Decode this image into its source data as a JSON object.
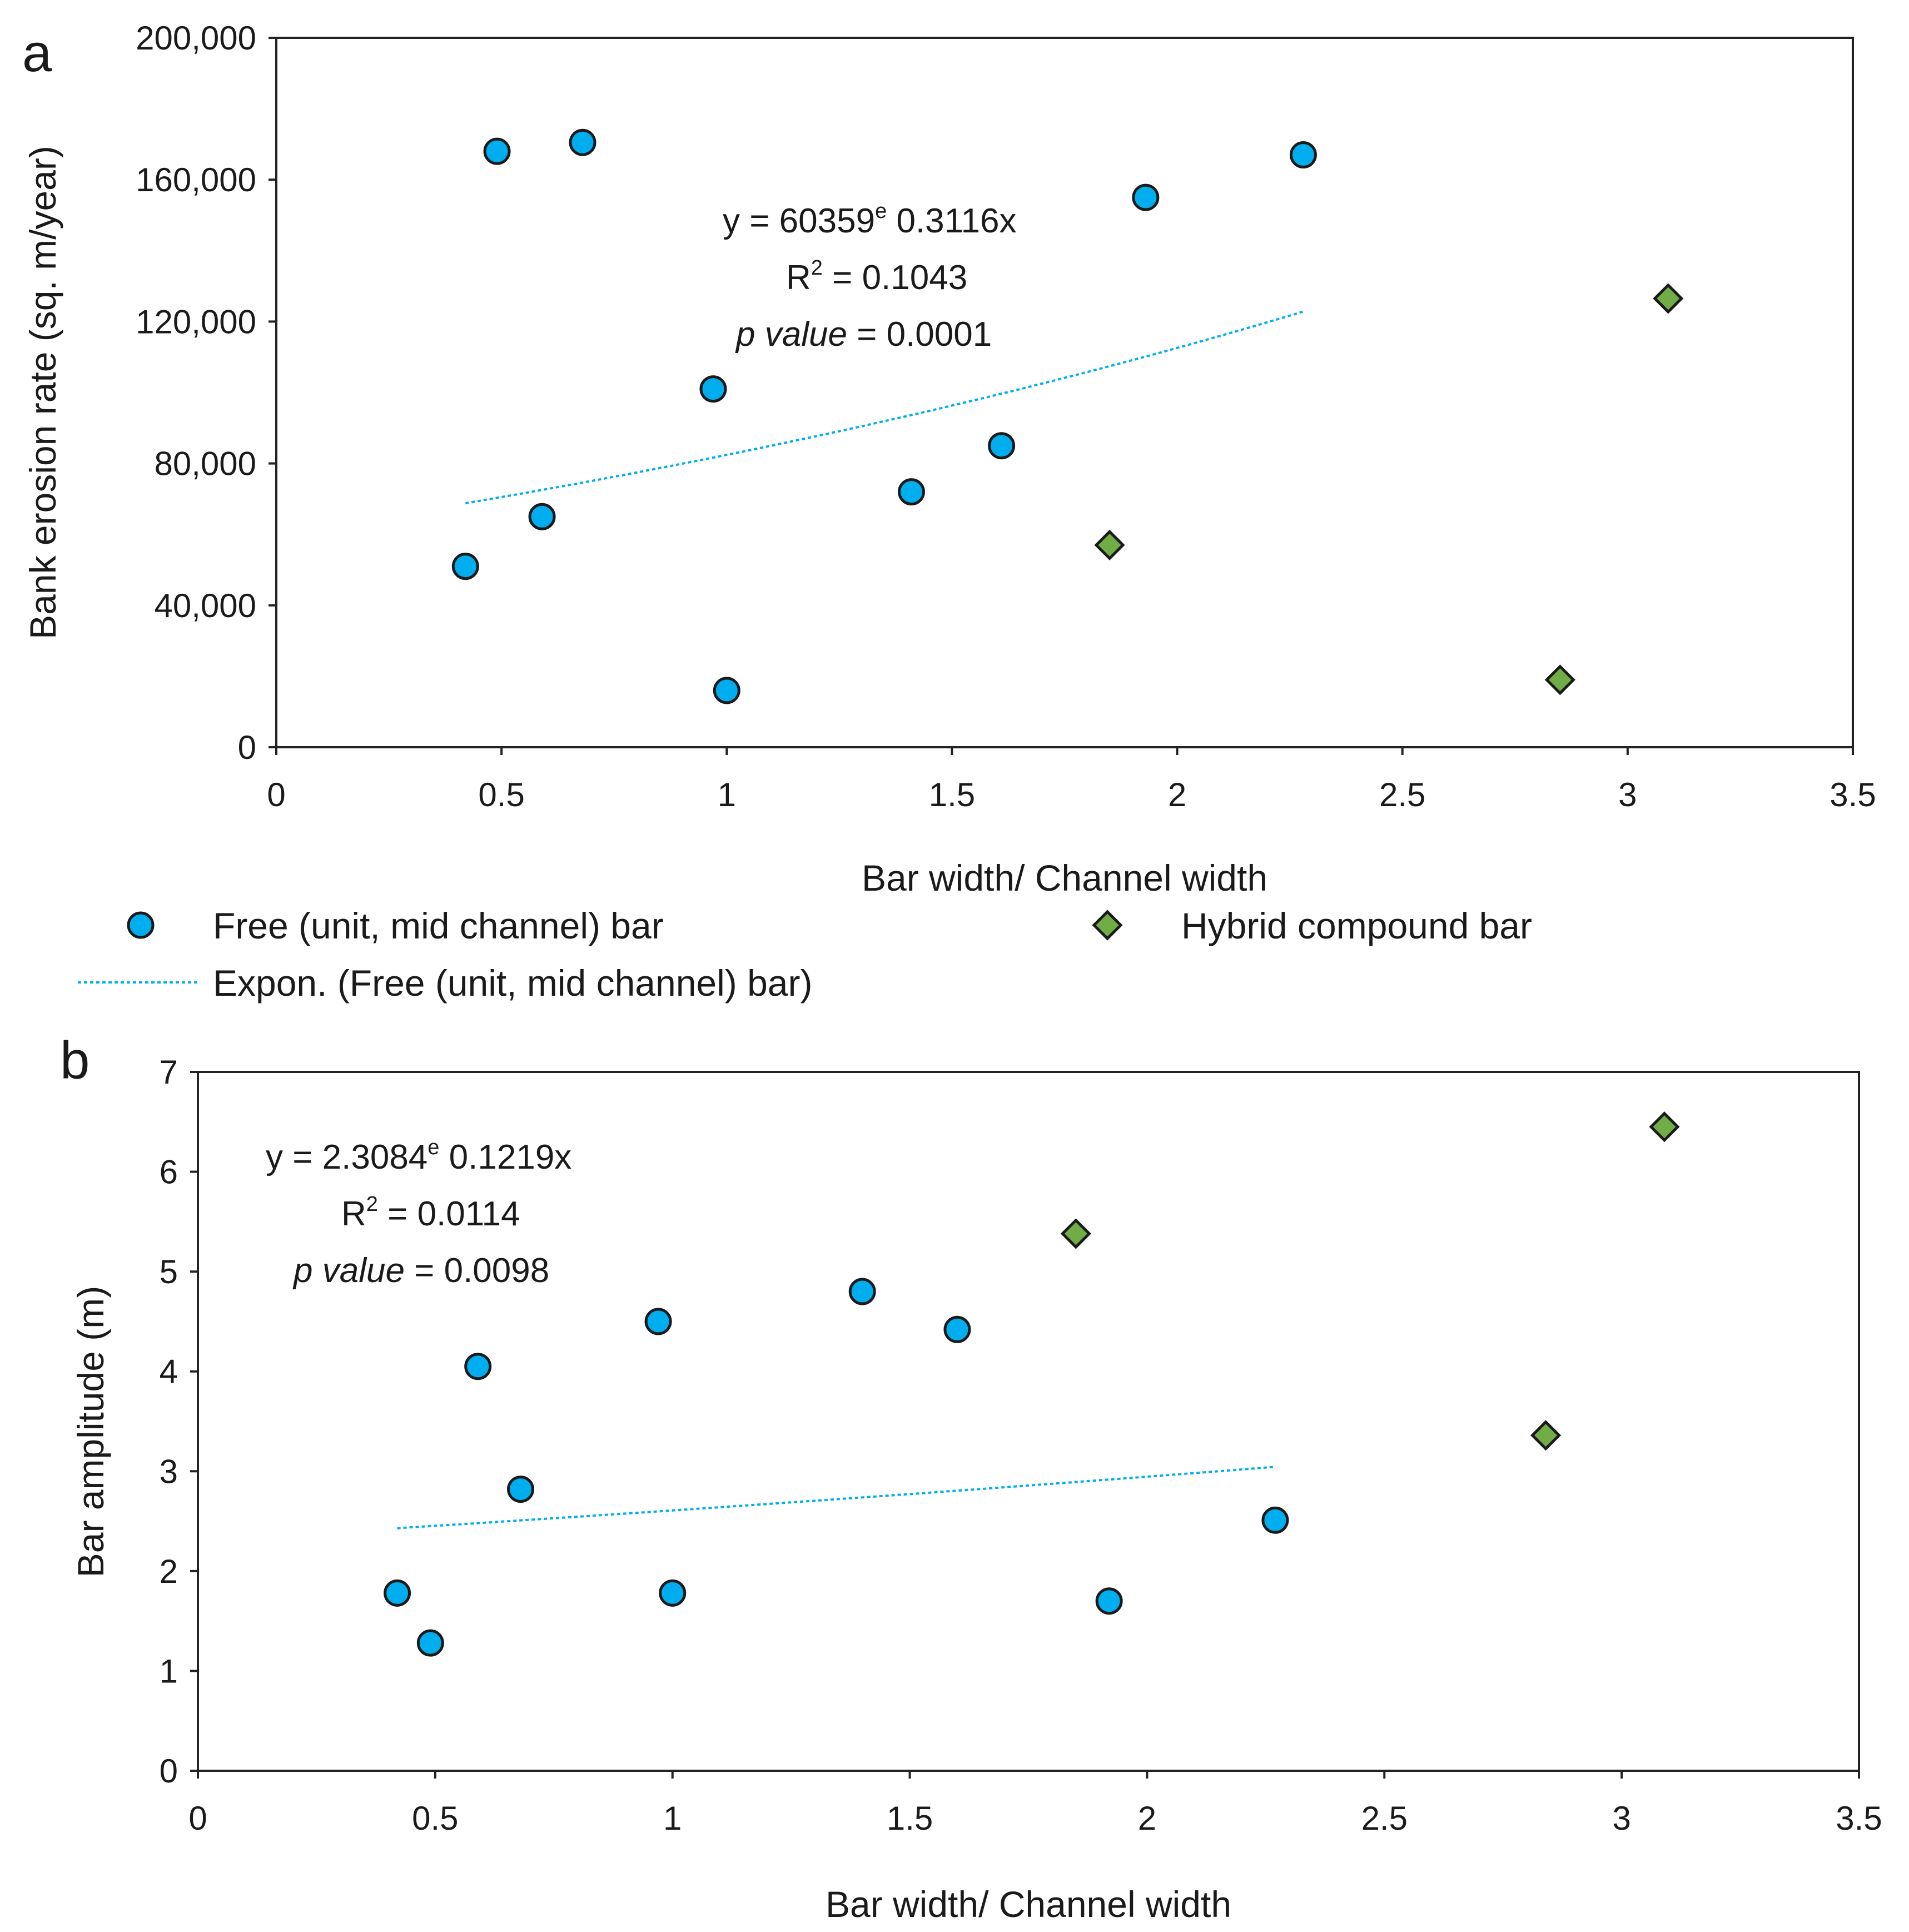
{
  "chart_data": [
    {
      "panel_label": "a",
      "type": "scatter",
      "xlabel": "Bar width/ Channel width",
      "ylabel": "Bank erosion rate (sq. m/year)",
      "xlim": [
        0,
        3.5
      ],
      "ylim": [
        0,
        200000
      ],
      "xticks": [
        0,
        0.5,
        1,
        1.5,
        2,
        2.5,
        3,
        3.5
      ],
      "xtick_labels": [
        "0",
        "0.5",
        "1",
        "1.5",
        "2",
        "2.5",
        "3",
        "3.5"
      ],
      "yticks": [
        0,
        40000,
        80000,
        120000,
        160000,
        200000
      ],
      "ytick_labels": [
        "0",
        "40,000",
        "80,000",
        "120,000",
        "160,000",
        "200,000"
      ],
      "grid": false,
      "series": [
        {
          "name": "Free (unit, mid channel) bar",
          "marker": "circle",
          "color": "#00AEEF",
          "points": [
            {
              "x": 0.42,
              "y": 51000
            },
            {
              "x": 0.49,
              "y": 168000
            },
            {
              "x": 0.59,
              "y": 65000
            },
            {
              "x": 0.68,
              "y": 170500
            },
            {
              "x": 0.97,
              "y": 101000
            },
            {
              "x": 1.0,
              "y": 16000
            },
            {
              "x": 1.41,
              "y": 72000
            },
            {
              "x": 1.61,
              "y": 85000
            },
            {
              "x": 1.93,
              "y": 155000
            },
            {
              "x": 2.28,
              "y": 167000
            }
          ]
        },
        {
          "name": "Hybrid compound bar",
          "marker": "diamond",
          "color": "#70AD47",
          "points": [
            {
              "x": 1.85,
              "y": 57000
            },
            {
              "x": 2.85,
              "y": 19000
            },
            {
              "x": 3.09,
              "y": 126500
            }
          ]
        }
      ],
      "trendline": {
        "name": "Expon. (Free (unit, mid channel) bar)",
        "type": "exponential",
        "coef_a": 60359,
        "coef_b": 0.3116,
        "x_range": [
          0.42,
          2.28
        ],
        "color": "#00AEEF",
        "style": "dotted"
      },
      "annotation": {
        "line1": "y = 60359",
        "line1_sup": "e",
        "line1_tail": " 0.3116x",
        "r2_prefix": "R",
        "r2_sup": "2",
        "r2_tail": " = 0.1043",
        "p_italic": "p value",
        "p_tail": " =  0.0001"
      },
      "legend": {
        "placement": "below",
        "items": [
          "Free (unit, mid channel) bar",
          "Hybrid compound bar",
          "Expon. (Free (unit, mid channel) bar)"
        ]
      }
    },
    {
      "panel_label": "b",
      "type": "scatter",
      "xlabel": "Bar width/ Channel width",
      "ylabel": "Bar amplitude (m)",
      "xlim": [
        0,
        3.5
      ],
      "ylim": [
        0,
        7
      ],
      "xticks": [
        0,
        0.5,
        1,
        1.5,
        2,
        2.5,
        3,
        3.5
      ],
      "xtick_labels": [
        "0",
        "0.5",
        "1",
        "1.5",
        "2",
        "2.5",
        "3",
        "3.5"
      ],
      "yticks": [
        0,
        1,
        2,
        3,
        4,
        5,
        6,
        7
      ],
      "ytick_labels": [
        "0",
        "1",
        "2",
        "3",
        "4",
        "5",
        "6",
        "7"
      ],
      "grid": false,
      "series": [
        {
          "name": "Free (unit, mid channel) bar",
          "marker": "circle",
          "color": "#00AEEF",
          "points": [
            {
              "x": 0.42,
              "y": 1.78
            },
            {
              "x": 0.49,
              "y": 1.28
            },
            {
              "x": 0.59,
              "y": 4.05
            },
            {
              "x": 0.68,
              "y": 2.82
            },
            {
              "x": 0.97,
              "y": 4.5
            },
            {
              "x": 1.0,
              "y": 1.78
            },
            {
              "x": 1.4,
              "y": 4.8
            },
            {
              "x": 1.6,
              "y": 4.42
            },
            {
              "x": 1.92,
              "y": 1.7
            },
            {
              "x": 2.27,
              "y": 2.51
            }
          ]
        },
        {
          "name": "Hybrid compound bar",
          "marker": "diamond",
          "color": "#70AD47",
          "points": [
            {
              "x": 1.85,
              "y": 5.38
            },
            {
              "x": 2.84,
              "y": 3.36
            },
            {
              "x": 3.09,
              "y": 6.45
            }
          ]
        }
      ],
      "trendline": {
        "type": "exponential",
        "coef_a": 2.3084,
        "coef_b": 0.1219,
        "x_range": [
          0.42,
          2.27
        ],
        "color": "#00AEEF",
        "style": "dotted"
      },
      "annotation": {
        "line1": "y = 2.3084",
        "line1_sup": "e",
        "line1_tail": " 0.1219x",
        "r2_prefix": "R",
        "r2_sup": "2",
        "r2_tail": " = 0.0114",
        "p_italic": "p value",
        "p_tail": " = 0.0098"
      }
    }
  ]
}
